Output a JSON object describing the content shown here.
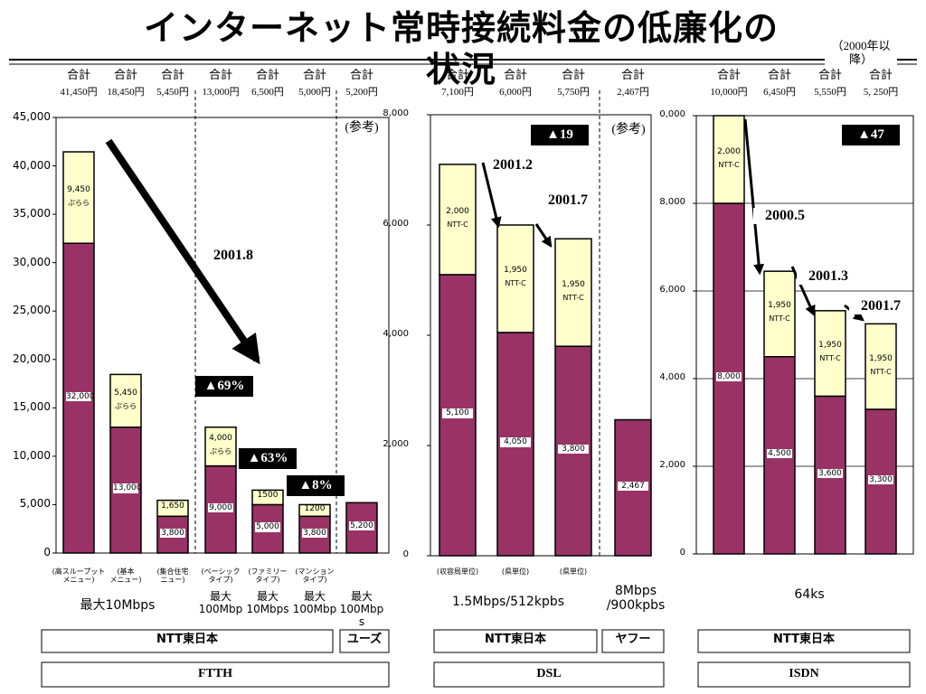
{
  "title": "インターネット常時接続料金の低廉化の状況",
  "note": "（2000年以降）",
  "chart_data": [
    {
      "type": "bar",
      "stacked": true,
      "grid": false,
      "ylim": [
        0,
        45000
      ],
      "yticks": [
        0,
        {
          "value": 5000,
          "label": "5,000"
        },
        {
          "value": 10000,
          "label": "10,000"
        },
        {
          "value": 15000,
          "label": "15,000"
        },
        {
          "value": 20000,
          "label": "20,000"
        },
        {
          "value": 25000,
          "label": "25,000"
        },
        {
          "value": 30000,
          "label": "30,000"
        },
        {
          "value": 35000,
          "label": "35,000"
        },
        {
          "value": 40000,
          "label": "40,000"
        },
        {
          "value": 45000,
          "label": "45,000"
        }
      ],
      "categories": [
        "(高スループット\nメニュー)",
        "(基本\nメニュー)",
        "(集合住宅\nニュー)",
        "(ベーシック\nタイプ)",
        "(ファミリー\nタイプ)",
        "(マンション\nタイプ)",
        null
      ],
      "total_caption": "合計",
      "total_labels": [
        "41,450円",
        "18,450円",
        "5,450円",
        "13,000円",
        "6,500円",
        "5,000円",
        "5,200円"
      ],
      "series": [
        {
          "color": "#993366",
          "values": [
            32000,
            13000,
            3800,
            9000,
            5000,
            3800,
            5200
          ],
          "value_labels": [
            "32,000",
            "13,000",
            "3,800",
            "9,000",
            "5,000",
            "3,800",
            "5,200"
          ]
        },
        {
          "color": "#ffffcc",
          "values": [
            9450,
            5450,
            1650,
            4000,
            1500,
            1200,
            null
          ],
          "value_labels": [
            "9,450",
            "5,450",
            "1,650",
            "4,000",
            "1500",
            "1200",
            null
          ],
          "notes": [
            "ぷらら",
            "ぷらら",
            null,
            "ぷらら",
            null,
            null,
            null
          ]
        }
      ],
      "annotations": [
        "2001.8",
        "▲69%",
        "▲63%",
        "▲8%",
        "(参考)"
      ],
      "speed_labels": [
        "最大10Mbps",
        "最大\n100Mbp",
        "最大\n10Mbps",
        "最大\n100Mbp",
        "最大\n100Mbp\ns"
      ],
      "providers": [
        "NTT東日本",
        "ユーズ"
      ],
      "technology": "FTTH"
    },
    {
      "type": "bar",
      "stacked": true,
      "grid": false,
      "ylim": [
        0,
        8000
      ],
      "yticks": [
        0,
        {
          "value": 2000,
          "label": "2,000"
        },
        {
          "value": 4000,
          "label": "4,000"
        },
        {
          "value": 6000,
          "label": "6,000"
        },
        {
          "value": 8000,
          "label": "8,000"
        }
      ],
      "categories": [
        "(収容局単位)",
        "(県単位)",
        "(県単位)",
        null
      ],
      "total_caption": "合計",
      "total_labels": [
        "7,100円",
        "6,000円",
        "5,750円",
        "2,467円"
      ],
      "series": [
        {
          "color": "#993366",
          "values": [
            5100,
            4050,
            3800,
            2467
          ],
          "value_labels": [
            "5,100",
            "4,050",
            "3,800",
            "2,467"
          ]
        },
        {
          "color": "#ffffcc",
          "values": [
            2000,
            1950,
            1950,
            null
          ],
          "value_labels": [
            "2,000",
            "1,950",
            "1,950",
            null
          ],
          "notes": [
            "NTT-C",
            "NTT-C",
            "NTT-C",
            null
          ]
        }
      ],
      "annotations": [
        "2001.2",
        "2001.7",
        "▲19",
        "(参考)"
      ],
      "speed_labels": [
        "1.5Mbps/512kpbs",
        "8Mbps\n/900kpbs"
      ],
      "providers": [
        "NTT東日本",
        "ヤフー"
      ],
      "technology": "DSL"
    },
    {
      "type": "bar",
      "stacked": true,
      "grid": true,
      "ylim": [
        0,
        10000
      ],
      "yticks": [
        0,
        {
          "value": 2000,
          "label": "2,000"
        },
        {
          "value": 4000,
          "label": "4,000"
        },
        {
          "value": 6000,
          "label": "6,000"
        },
        {
          "value": 8000,
          "label": "8,000"
        },
        {
          "value": 10000,
          "label": "0,000"
        }
      ],
      "categories": [
        null,
        null,
        null,
        null
      ],
      "total_caption": "合計",
      "total_labels": [
        "10,000円",
        "6,450円",
        "5,550円",
        "5, 250円"
      ],
      "series": [
        {
          "color": "#993366",
          "values": [
            8000,
            4500,
            3600,
            3300
          ],
          "value_labels": [
            "8,000",
            "4,500",
            "3,600",
            "3,300"
          ]
        },
        {
          "color": "#ffffcc",
          "values": [
            2000,
            1950,
            1950,
            1950
          ],
          "value_labels": [
            "2,000",
            "1,950",
            "1,950",
            "1,950"
          ],
          "notes": [
            "NTT-C",
            "NTT-C",
            "NTT-C",
            "NTT-C"
          ]
        }
      ],
      "annotations": [
        "2000.5",
        "2001.3",
        "2001.7",
        "▲47"
      ],
      "speed_labels": [
        "64ks"
      ],
      "providers": [
        "NTT東日本"
      ],
      "technology": "ISDN"
    }
  ]
}
